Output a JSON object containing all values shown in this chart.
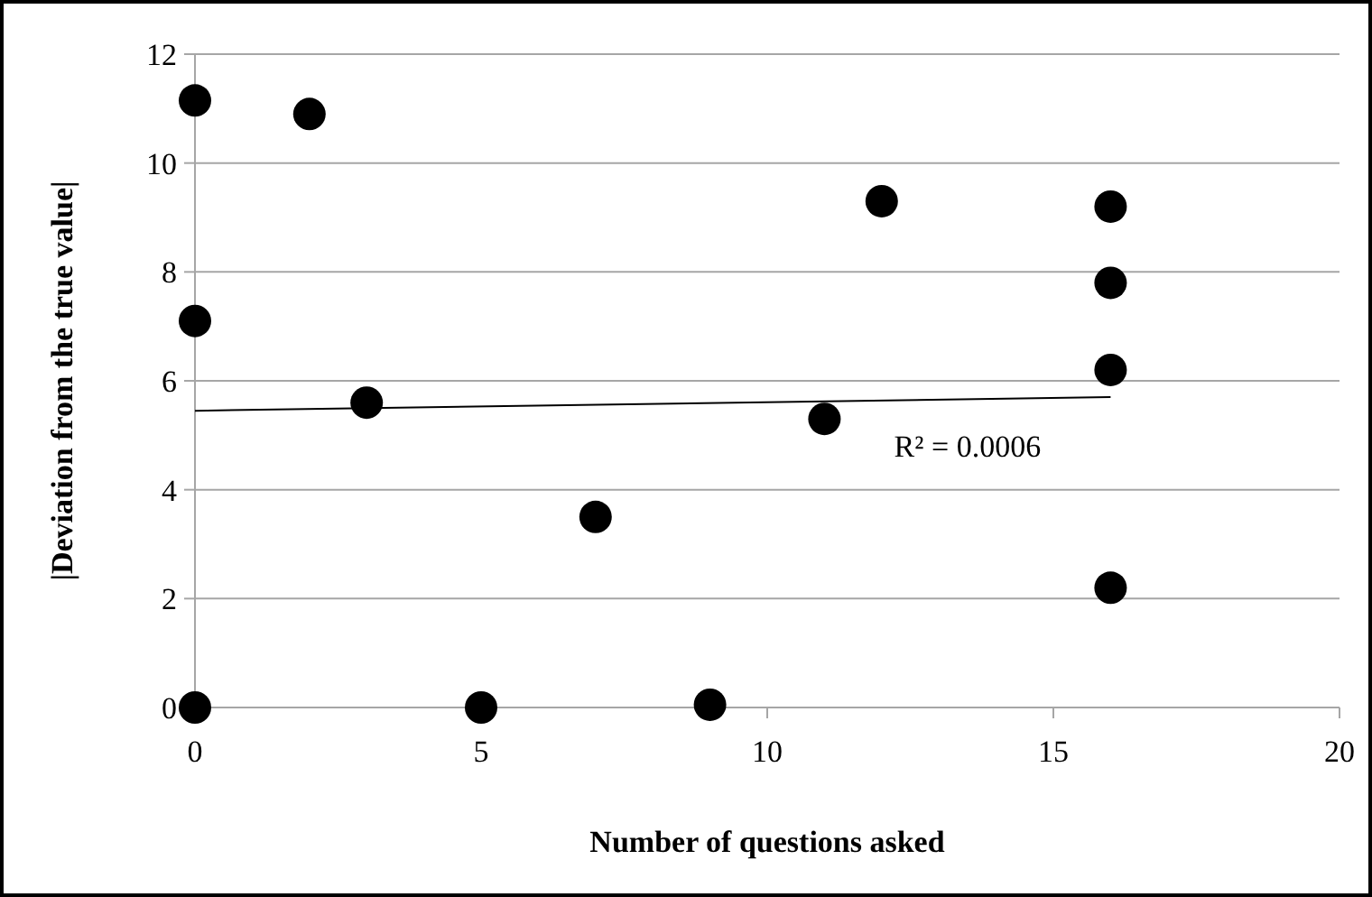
{
  "chart_data": {
    "type": "scatter",
    "xlabel": "Number of questions asked",
    "ylabel": "|Deviation from the true value|",
    "xlim": [
      0,
      20
    ],
    "xticks": [
      0,
      5,
      10,
      15,
      20
    ],
    "ylim": [
      0,
      12
    ],
    "yticks": [
      0,
      2,
      4,
      6,
      8,
      10,
      12
    ],
    "grid": "y",
    "marker": "circle",
    "series": [
      {
        "color": "#000000",
        "x": [
          0,
          0,
          0,
          2,
          3,
          5,
          7,
          9,
          11,
          12,
          16,
          16,
          16,
          16
        ],
        "values": [
          11.15,
          7.1,
          0,
          10.9,
          5.6,
          0,
          3.5,
          0.05,
          5.3,
          9.3,
          9.2,
          7.8,
          6.2,
          2.2
        ]
      },
      {
        "type": "line",
        "color": "#000000",
        "marker": "none",
        "x": [
          0,
          16
        ],
        "values": [
          5.45,
          5.7
        ]
      }
    ],
    "annotations": [
      "R² = 0.0006"
    ]
  }
}
